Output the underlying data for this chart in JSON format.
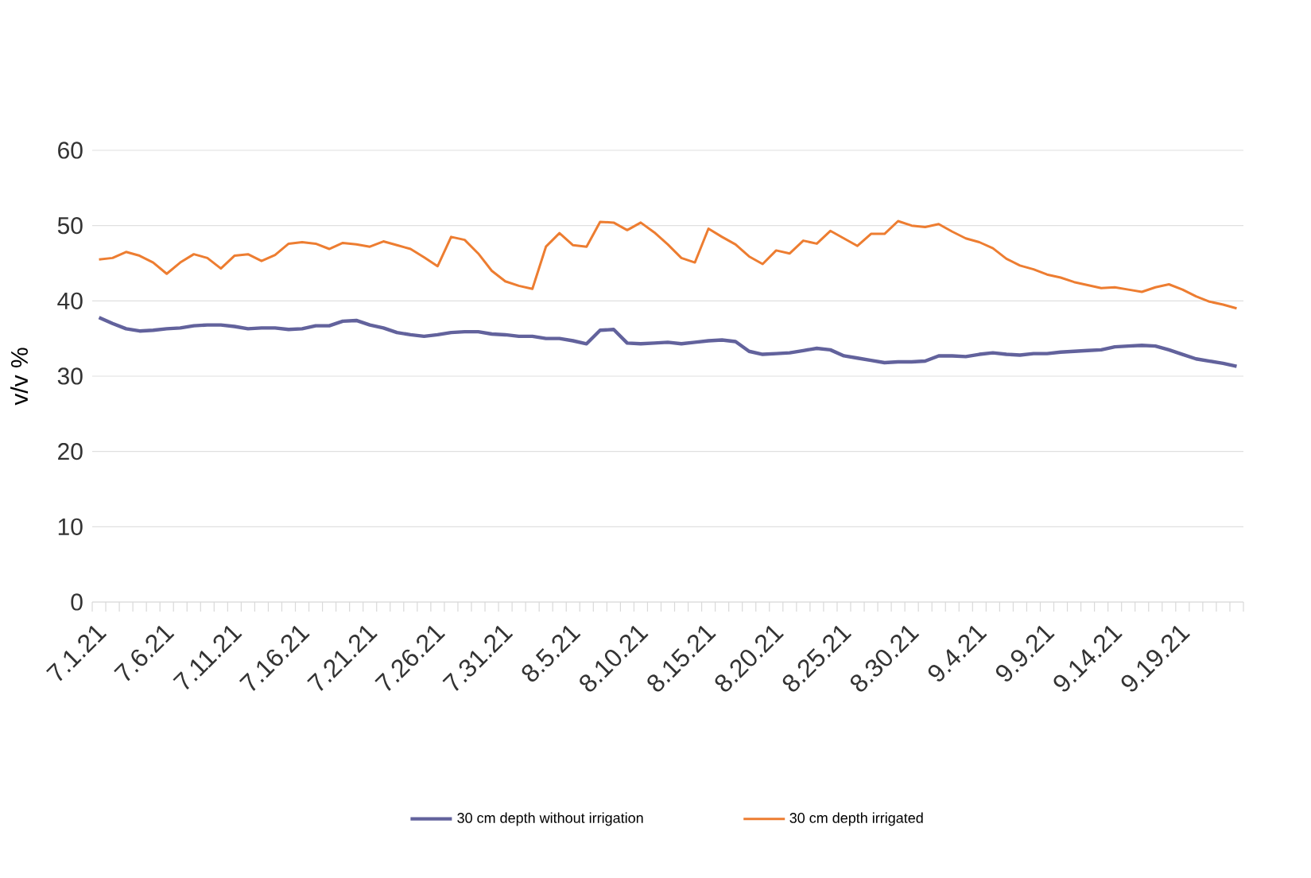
{
  "chart_data": {
    "type": "line",
    "ylabel": "v/v %",
    "categories": [
      "7.1.21",
      null,
      null,
      null,
      null,
      "7.6.21",
      null,
      null,
      null,
      null,
      "7.11.21",
      null,
      null,
      null,
      null,
      "7.16.21",
      null,
      null,
      null,
      null,
      "7.21.21",
      null,
      null,
      null,
      null,
      "7.26.21",
      null,
      null,
      null,
      null,
      "7.31.21",
      null,
      null,
      null,
      null,
      "8.5.21",
      null,
      null,
      null,
      null,
      "8.10.21",
      null,
      null,
      null,
      null,
      "8.15.21",
      null,
      null,
      null,
      null,
      "8.20.21",
      null,
      null,
      null,
      null,
      "8.25.21",
      null,
      null,
      null,
      null,
      "8.30.21",
      null,
      null,
      null,
      null,
      "9.4.21",
      null,
      null,
      null,
      null,
      "9.9.21",
      null,
      null,
      null,
      null,
      "9.14.21",
      null,
      null,
      null,
      null,
      "9.19.21",
      null,
      null,
      null,
      null
    ],
    "series": [
      {
        "name": "30 cm depth without irrigation",
        "color": "#62629c",
        "values": [
          37.8,
          37.0,
          36.3,
          36.0,
          36.1,
          36.3,
          36.4,
          36.7,
          36.8,
          36.8,
          36.6,
          36.3,
          36.4,
          36.4,
          36.2,
          36.3,
          36.7,
          36.7,
          37.3,
          37.4,
          36.8,
          36.4,
          35.8,
          35.5,
          35.3,
          35.5,
          35.8,
          35.9,
          35.9,
          35.6,
          35.5,
          35.3,
          35.3,
          35.0,
          35.0,
          34.7,
          34.3,
          36.1,
          36.2,
          34.4,
          34.3,
          34.4,
          34.5,
          34.3,
          34.5,
          34.7,
          34.8,
          34.6,
          33.3,
          32.9,
          33.0,
          33.1,
          33.4,
          33.7,
          33.5,
          32.7,
          32.4,
          32.1,
          31.8,
          31.9,
          31.9,
          32.0,
          32.7,
          32.7,
          32.6,
          32.9,
          33.1,
          32.9,
          32.8,
          33.0,
          33.0,
          33.2,
          33.3,
          33.4,
          33.5,
          33.9,
          34.0,
          34.1,
          34.0,
          33.5,
          32.9,
          32.3,
          32.0,
          31.7,
          31.3
        ]
      },
      {
        "name": "30 cm depth irrigated",
        "color": "#ed7d31",
        "values": [
          45.5,
          45.7,
          46.5,
          46.0,
          45.1,
          43.6,
          45.1,
          46.2,
          45.7,
          44.3,
          46.0,
          46.2,
          45.3,
          46.1,
          47.6,
          47.8,
          47.6,
          46.9,
          47.7,
          47.5,
          47.2,
          47.9,
          47.4,
          46.9,
          45.8,
          44.6,
          48.5,
          48.1,
          46.3,
          44.0,
          42.6,
          42.0,
          41.6,
          47.2,
          49.0,
          47.4,
          47.2,
          50.5,
          50.4,
          49.4,
          50.4,
          49.1,
          47.5,
          45.7,
          45.1,
          49.6,
          48.5,
          47.5,
          45.9,
          44.9,
          46.7,
          46.3,
          48.0,
          47.6,
          49.3,
          48.3,
          47.3,
          48.9,
          48.9,
          50.6,
          50.0,
          49.8,
          50.2,
          49.2,
          48.3,
          47.8,
          47.0,
          45.6,
          44.7,
          44.2,
          43.5,
          43.1,
          42.5,
          42.1,
          41.7,
          41.8,
          41.5,
          41.2,
          41.8,
          42.2,
          41.5,
          40.6,
          39.9,
          39.5,
          39.0
        ]
      }
    ],
    "ylim": [
      0,
      60
    ],
    "yticks": [
      0,
      10,
      20,
      30,
      40,
      50,
      60
    ],
    "grid": "y",
    "legend": "bottom"
  }
}
